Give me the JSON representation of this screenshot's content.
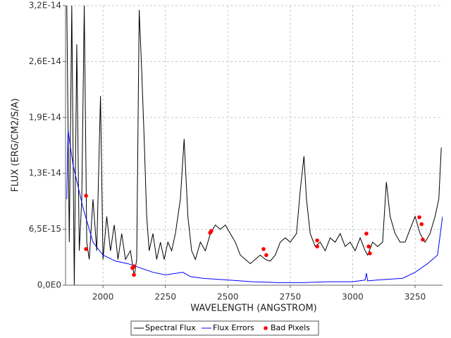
{
  "chart_data": {
    "type": "line",
    "xlabel": "WAVELENGTH (ANGSTROM)",
    "ylabel": "FLUX (ERG/CM2/S/A)",
    "xlim": [
      1850,
      3360
    ],
    "ylim": [
      0,
      3.25e-14
    ],
    "xticks": [
      2000,
      2250,
      2500,
      2750,
      3000,
      3250
    ],
    "yticks": [
      {
        "value": 0,
        "label": "0,0E0"
      },
      {
        "value": 6.5e-15,
        "label": "6,5E-15"
      },
      {
        "value": 1.3e-14,
        "label": "1,3E-14"
      },
      {
        "value": 1.95e-14,
        "label": "1,9E-14"
      },
      {
        "value": 2.6e-14,
        "label": "2,6E-14"
      },
      {
        "value": 3.25e-14,
        "label": "3,2E-14"
      }
    ],
    "grid": true,
    "legend": "bottom",
    "series": [
      {
        "name": "Spectral Flux",
        "color": "#000000",
        "type": "line",
        "x": [
          1855,
          1865,
          1875,
          1885,
          1895,
          1905,
          1915,
          1925,
          1935,
          1945,
          1960,
          1975,
          1990,
          2000,
          2015,
          2030,
          2045,
          2060,
          2075,
          2090,
          2110,
          2125,
          2135,
          2145,
          2155,
          2165,
          2175,
          2185,
          2200,
          2215,
          2230,
          2245,
          2260,
          2275,
          2290,
          2310,
          2325,
          2340,
          2355,
          2370,
          2390,
          2410,
          2430,
          2450,
          2470,
          2490,
          2510,
          2530,
          2550,
          2570,
          2590,
          2610,
          2630,
          2650,
          2670,
          2690,
          2710,
          2730,
          2750,
          2775,
          2790,
          2805,
          2815,
          2830,
          2850,
          2870,
          2890,
          2910,
          2930,
          2950,
          2970,
          2990,
          3010,
          3030,
          3050,
          3060,
          3080,
          3100,
          3120,
          3135,
          3150,
          3170,
          3190,
          3210,
          3230,
          3250,
          3270,
          3290,
          3310,
          3330,
          3345,
          3355
        ],
        "values": [
          3.25e-14,
          5e-15,
          3.25e-14,
          0,
          2.8e-14,
          4e-15,
          1e-14,
          3.25e-14,
          5e-15,
          3e-15,
          1e-14,
          4e-15,
          2.2e-14,
          3e-15,
          8e-15,
          4e-15,
          7e-15,
          3e-15,
          6e-15,
          3e-15,
          4e-15,
          1e-15,
          3e-15,
          3.2e-14,
          2.5e-14,
          1.7e-14,
          8e-15,
          4e-15,
          6e-15,
          3e-15,
          5e-15,
          3e-15,
          5e-15,
          4e-15,
          6e-15,
          1e-14,
          1.7e-14,
          8e-15,
          4e-15,
          3e-15,
          5e-15,
          4e-15,
          6e-15,
          7e-15,
          6.5e-15,
          7e-15,
          6e-15,
          5e-15,
          3.5e-15,
          3e-15,
          2.5e-15,
          3e-15,
          3.5e-15,
          3e-15,
          2.8e-15,
          3.5e-15,
          5e-15,
          5.5e-15,
          5e-15,
          6e-15,
          1.1e-14,
          1.5e-14,
          1e-14,
          6e-15,
          4.5e-15,
          5e-15,
          4e-15,
          5.5e-15,
          5e-15,
          6e-15,
          4.5e-15,
          5e-15,
          4e-15,
          5.5e-15,
          4e-15,
          3.5e-15,
          5e-15,
          4.5e-15,
          5e-15,
          1.2e-14,
          8e-15,
          6e-15,
          5e-15,
          5e-15,
          6.5e-15,
          8e-15,
          6e-15,
          5e-15,
          6e-15,
          8e-15,
          1e-14,
          1.6e-14
        ]
      },
      {
        "name": "Flux Errors",
        "color": "#0000ff",
        "type": "line",
        "x": [
          1855,
          1860,
          1880,
          1920,
          1960,
          2000,
          2050,
          2100,
          2150,
          2200,
          2250,
          2320,
          2350,
          2400,
          2500,
          2600,
          2700,
          2800,
          2900,
          3000,
          3050,
          3055,
          3060,
          3100,
          3200,
          3250,
          3300,
          3340,
          3360
        ],
        "values": [
          1e-14,
          1.8e-14,
          1.4e-14,
          9e-15,
          5e-15,
          3.5e-15,
          2.8e-15,
          2.5e-15,
          2e-15,
          1.5e-15,
          1.2e-15,
          1.5e-15,
          1e-15,
          8e-16,
          6e-16,
          4e-16,
          3e-16,
          3e-16,
          4e-16,
          4e-16,
          6e-16,
          1.4e-15,
          5e-16,
          6e-16,
          8e-16,
          1.5e-15,
          2.5e-15,
          3.5e-15,
          8e-15
        ]
      },
      {
        "name": "Bad Pixels",
        "color": "#ff0000",
        "type": "scatter",
        "x": [
          1932,
          1932,
          2118,
          2124,
          2124,
          2429,
          2434,
          2643,
          2654,
          2858,
          2858,
          3055,
          3064,
          3069,
          3267,
          3276,
          3281
        ],
        "values": [
          1.04e-14,
          4.2e-15,
          2e-15,
          1.2e-15,
          2.2e-15,
          6.1e-15,
          6.3e-15,
          4.2e-15,
          3.5e-15,
          5.2e-15,
          4.5e-15,
          6e-15,
          4.5e-15,
          3.7e-15,
          7.9e-15,
          7.1e-15,
          5.3e-15
        ]
      }
    ]
  }
}
